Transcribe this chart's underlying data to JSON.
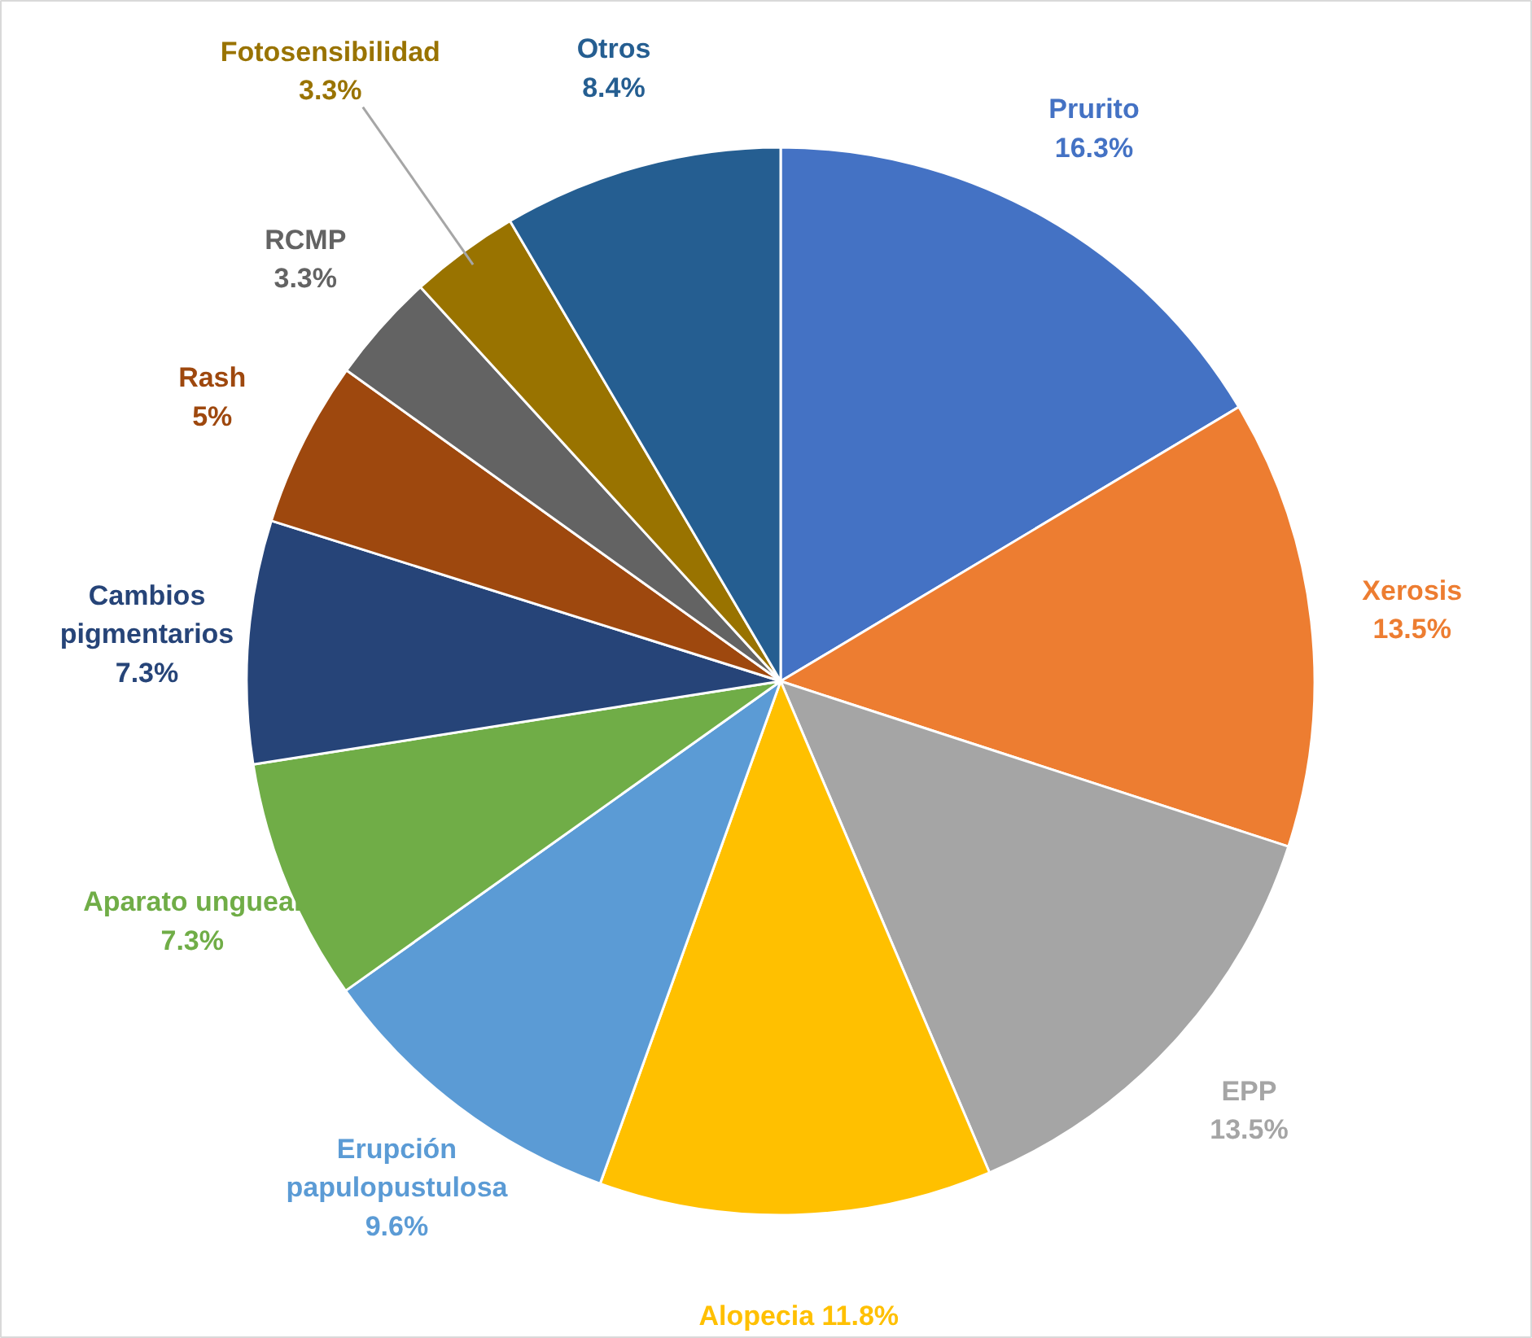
{
  "chart_data": {
    "type": "pie",
    "categories": [
      "Prurito",
      "Xerosis",
      "EPP",
      "Alopecia",
      "Erupción papulopustulosa",
      "Aparato ungueal",
      "Cambios pigmentarios",
      "Rash",
      "RCMP",
      "Fotosensibilidad",
      "Otros"
    ],
    "values": [
      16.3,
      13.5,
      13.5,
      11.8,
      9.6,
      7.3,
      7.3,
      5,
      3.3,
      3.3,
      8.4
    ],
    "value_labels": [
      "16.3%",
      "13.5%",
      "13.5%",
      "11.8%",
      "9.6%",
      "7.3%",
      "7.3%",
      "5%",
      "3.3%",
      "3.3%",
      "8.4%"
    ],
    "colors": [
      "#4472c4",
      "#ed7d31",
      "#a5a5a5",
      "#ffc000",
      "#5b9bd5",
      "#70ad47",
      "#264478",
      "#9e480e",
      "#636363",
      "#997300",
      "#255e91"
    ]
  }
}
